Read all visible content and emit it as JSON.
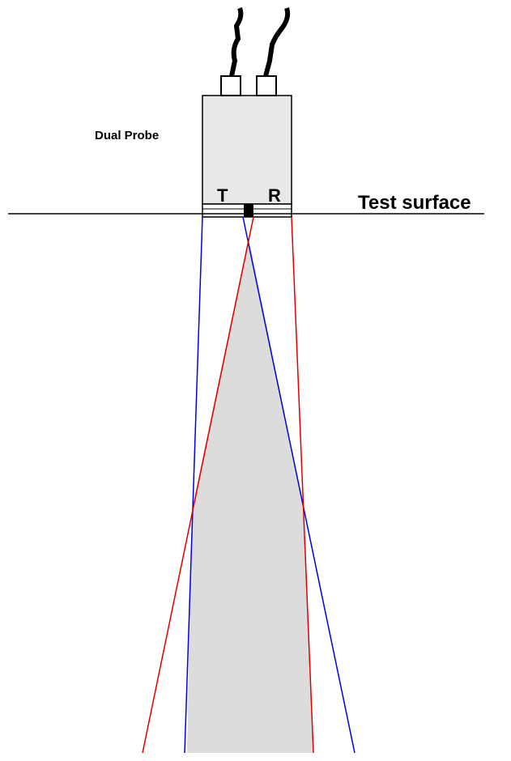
{
  "probe": {
    "label": "Dual Probe",
    "transmitter": "T",
    "receiver": "R"
  },
  "surface": {
    "label": "Test surface"
  }
}
